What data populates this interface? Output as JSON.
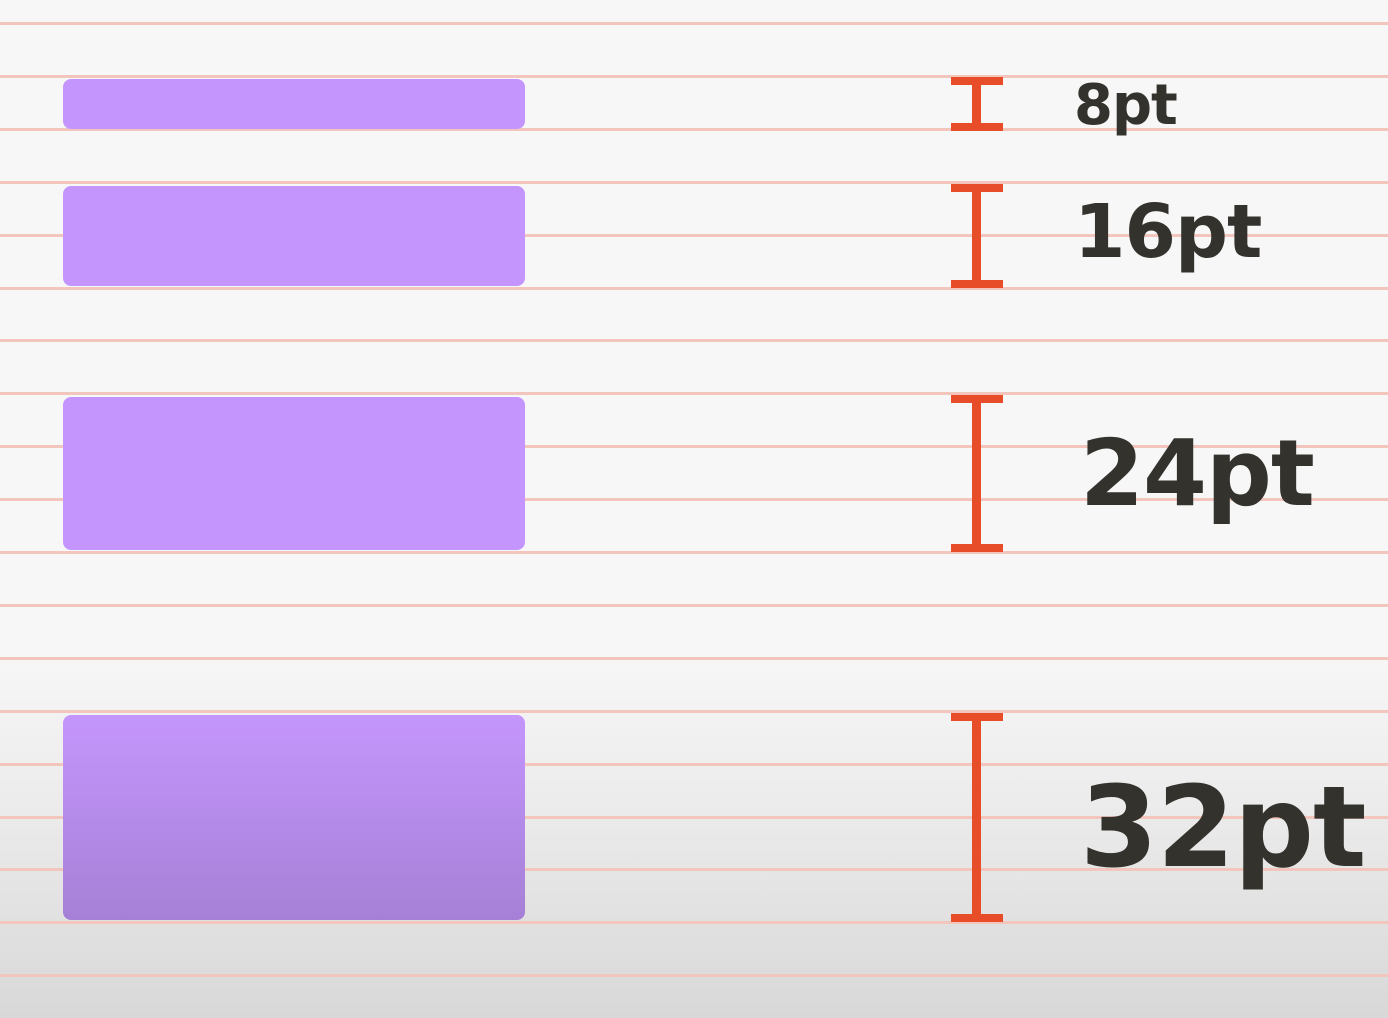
{
  "colors": {
    "background": "#f7f7f7",
    "grid_line": "#f3c6bd",
    "block_fill": "#c496fd",
    "block_fill_dark": "#a680d6",
    "bracket": "#e84d2a",
    "label_text": "#33322d"
  },
  "spacing_items": [
    {
      "label": "8pt",
      "value_pt": 8
    },
    {
      "label": "16pt",
      "value_pt": 16
    },
    {
      "label": "24pt",
      "value_pt": 24
    },
    {
      "label": "32pt",
      "value_pt": 32
    }
  ]
}
